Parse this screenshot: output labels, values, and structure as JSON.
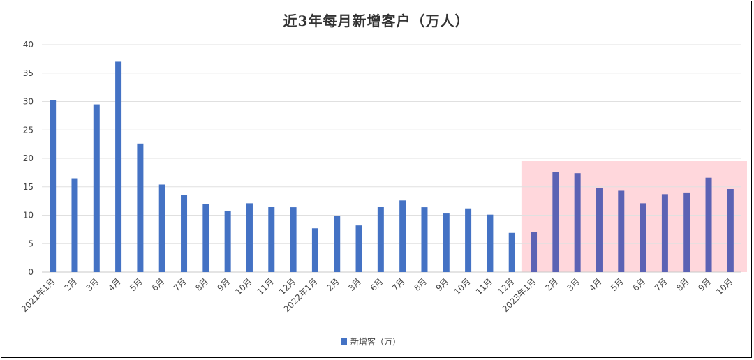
{
  "chart_data": {
    "type": "bar",
    "title": "近3年每月新增客户（万人）",
    "categories": [
      "2021年1月",
      "2月",
      "3月",
      "4月",
      "5月",
      "6月",
      "7月",
      "8月",
      "9月",
      "10月",
      "11月",
      "12月",
      "2022年1月",
      "2月",
      "3月",
      "6月",
      "7月",
      "8月",
      "9月",
      "10月",
      "11月",
      "12月",
      "2023年1月",
      "2月",
      "3月",
      "4月",
      "5月",
      "6月",
      "7月",
      "8月",
      "9月",
      "10月"
    ],
    "series": [
      {
        "name": "新增客（万）",
        "values": [
          30.3,
          16.5,
          29.5,
          37.0,
          22.6,
          15.4,
          13.6,
          12.0,
          10.8,
          12.1,
          11.5,
          11.4,
          7.7,
          9.9,
          8.2,
          11.5,
          12.6,
          11.4,
          10.3,
          11.2,
          10.1,
          6.9,
          7.0,
          17.6,
          17.4,
          14.8,
          14.3,
          12.1,
          13.7,
          14.0,
          16.6,
          14.6
        ]
      }
    ],
    "ylim": [
      0,
      40
    ],
    "yticks": [
      0,
      5,
      10,
      15,
      20,
      25,
      30,
      35,
      40
    ],
    "grid": true,
    "legend_position": "bottom",
    "colors": {
      "bar": "#4472c4",
      "bar_highlighted": "#5b62b4",
      "highlight_fill": "#ffd7dc",
      "grid": "#e0e0e0"
    },
    "highlight_range": {
      "from": "2023年1月",
      "to": "10月"
    }
  }
}
